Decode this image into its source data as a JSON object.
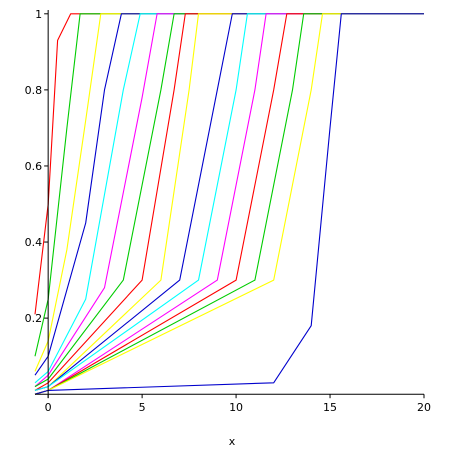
{
  "chart_data": {
    "type": "line",
    "title": "",
    "xlabel": "x",
    "ylabel": "",
    "xlim": [
      -0.7,
      20
    ],
    "ylim": [
      -0.01,
      1.01
    ],
    "x_ticks": [
      0,
      5,
      10,
      15,
      20
    ],
    "y_ticks": [
      0.2,
      0.4,
      0.6,
      0.8,
      1
    ],
    "x_tick_labels": [
      "0",
      "5",
      "10",
      "15",
      "20"
    ],
    "y_tick_labels": [
      "0.2",
      "0.4",
      "0.6",
      "0.8",
      "1"
    ],
    "grid": false,
    "legend": "none",
    "series": [
      {
        "color": "#ff0000",
        "values_at_x": [
          [
            -0.7,
            0.21
          ],
          [
            0,
            0.5
          ],
          [
            0.5,
            0.93
          ],
          [
            1.2,
            1.0
          ],
          [
            20,
            1.0
          ]
        ]
      },
      {
        "color": "#00cc00",
        "values_at_x": [
          [
            -0.7,
            0.1
          ],
          [
            0,
            0.25
          ],
          [
            1,
            0.7
          ],
          [
            1.7,
            1.0
          ],
          [
            20,
            1.0
          ]
        ]
      },
      {
        "color": "#ffff00",
        "values_at_x": [
          [
            -0.7,
            0.06
          ],
          [
            0,
            0.14
          ],
          [
            1,
            0.38
          ],
          [
            2.0,
            0.72
          ],
          [
            2.8,
            1.0
          ],
          [
            20,
            1.0
          ]
        ]
      },
      {
        "color": "#0000cc",
        "values_at_x": [
          [
            -0.7,
            0.05
          ],
          [
            0,
            0.1
          ],
          [
            2,
            0.45
          ],
          [
            3.0,
            0.8
          ],
          [
            3.9,
            1.0
          ],
          [
            20,
            1.0
          ]
        ]
      },
      {
        "color": "#00ffff",
        "values_at_x": [
          [
            -0.7,
            0.03
          ],
          [
            0,
            0.06
          ],
          [
            2,
            0.25
          ],
          [
            4.0,
            0.8
          ],
          [
            4.9,
            1.0
          ],
          [
            20,
            1.0
          ]
        ]
      },
      {
        "color": "#ff00ff",
        "values_at_x": [
          [
            -0.7,
            0.02
          ],
          [
            0,
            0.05
          ],
          [
            3,
            0.28
          ],
          [
            5.0,
            0.78
          ],
          [
            5.8,
            1.0
          ],
          [
            20,
            1.0
          ]
        ]
      },
      {
        "color": "#00cc00",
        "values_at_x": [
          [
            -0.7,
            0.02
          ],
          [
            0,
            0.04
          ],
          [
            4,
            0.3
          ],
          [
            6.0,
            0.8
          ],
          [
            6.7,
            1.0
          ],
          [
            20,
            1.0
          ]
        ]
      },
      {
        "color": "#ff0000",
        "values_at_x": [
          [
            -0.7,
            0.01
          ],
          [
            0,
            0.03
          ],
          [
            5,
            0.3
          ],
          [
            6.7,
            0.8
          ],
          [
            7.3,
            1.0
          ],
          [
            20,
            1.0
          ]
        ]
      },
      {
        "color": "#ffff00",
        "values_at_x": [
          [
            -0.7,
            0.01
          ],
          [
            0,
            0.02
          ],
          [
            6,
            0.3
          ],
          [
            7.5,
            0.8
          ],
          [
            8.0,
            1.0
          ],
          [
            20,
            1.0
          ]
        ]
      },
      {
        "color": "#0000cc",
        "values_at_x": [
          [
            -0.7,
            0.01
          ],
          [
            0,
            0.02
          ],
          [
            7,
            0.3
          ],
          [
            9.0,
            0.8
          ],
          [
            9.8,
            1.0
          ],
          [
            20,
            1.0
          ]
        ]
      },
      {
        "color": "#00ffff",
        "values_at_x": [
          [
            -0.7,
            0.01
          ],
          [
            0,
            0.02
          ],
          [
            8,
            0.3
          ],
          [
            10.0,
            0.8
          ],
          [
            10.6,
            1.0
          ],
          [
            20,
            1.0
          ]
        ]
      },
      {
        "color": "#ff00ff",
        "values_at_x": [
          [
            -0.7,
            0.0
          ],
          [
            0,
            0.01
          ],
          [
            9,
            0.3
          ],
          [
            11.0,
            0.8
          ],
          [
            11.6,
            1.0
          ],
          [
            20,
            1.0
          ]
        ]
      },
      {
        "color": "#ff0000",
        "values_at_x": [
          [
            -0.7,
            0.0
          ],
          [
            0,
            0.01
          ],
          [
            10,
            0.3
          ],
          [
            12.0,
            0.8
          ],
          [
            12.7,
            1.0
          ],
          [
            20,
            1.0
          ]
        ]
      },
      {
        "color": "#00cc00",
        "values_at_x": [
          [
            -0.7,
            0.0
          ],
          [
            0,
            0.01
          ],
          [
            11,
            0.3
          ],
          [
            13.0,
            0.8
          ],
          [
            13.6,
            1.0
          ],
          [
            20,
            1.0
          ]
        ]
      },
      {
        "color": "#ffff00",
        "values_at_x": [
          [
            -0.7,
            0.0
          ],
          [
            0,
            0.01
          ],
          [
            12,
            0.3
          ],
          [
            14.0,
            0.8
          ],
          [
            14.6,
            1.0
          ],
          [
            20,
            1.0
          ]
        ]
      },
      {
        "color": "#0000cc",
        "values_at_x": [
          [
            -0.7,
            0.0
          ],
          [
            0,
            0.01
          ],
          [
            12,
            0.03
          ],
          [
            14,
            0.18
          ],
          [
            15.0,
            0.7
          ],
          [
            15.6,
            1.0
          ],
          [
            20,
            1.0
          ]
        ]
      }
    ]
  }
}
